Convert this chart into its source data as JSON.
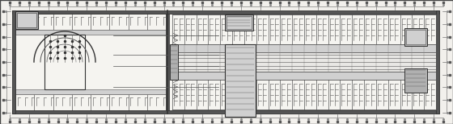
{
  "figsize": [
    5.6,
    1.54
  ],
  "dpi": 100,
  "bg": "#f2f0ec",
  "wall_dark": "#333333",
  "wall_med": "#555555",
  "wall_light": "#888888",
  "gray_fill": "#b0b0b0",
  "light_gray": "#d0d0d0",
  "white_fill": "#f5f4f0",
  "dim_dot_color": "#555555",
  "line_color": "#444444"
}
